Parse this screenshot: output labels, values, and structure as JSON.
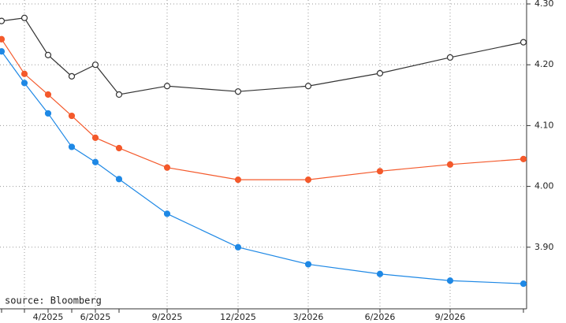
{
  "chart_data": {
    "type": "line",
    "categories": [
      null,
      null,
      "4/2025",
      null,
      "6/2025",
      null,
      "9/2025",
      "12/2025",
      "3/2026",
      "6/2026",
      "9/2026",
      null
    ],
    "series": [
      {
        "color": "#333333",
        "marker": "hollow",
        "values": [
          4.272,
          4.277,
          4.216,
          4.181,
          4.2,
          4.151,
          4.165,
          4.156,
          4.165,
          4.186,
          4.212,
          4.237
        ]
      },
      {
        "color": "#f4592b",
        "marker": "filled",
        "values": [
          4.242,
          4.185,
          4.151,
          4.116,
          4.08,
          4.063,
          4.031,
          4.011,
          4.011,
          4.025,
          4.036,
          4.045
        ]
      },
      {
        "color": "#1e88e5",
        "marker": "filled",
        "values": [
          4.222,
          4.17,
          4.12,
          4.065,
          4.04,
          4.012,
          3.955,
          3.9,
          3.872,
          3.856,
          3.845,
          3.84
        ]
      }
    ],
    "ylim": [
      3.8,
      4.3
    ],
    "yticks": [
      {
        "value": 3.9,
        "label": "3.90"
      },
      {
        "value": 4.0,
        "label": "4.00"
      },
      {
        "value": 4.1,
        "label": "4.10"
      },
      {
        "value": 4.2,
        "label": "4.20"
      },
      {
        "value": 4.3,
        "label": "4.30"
      }
    ],
    "grid": true,
    "annotation": "source: Bloomberg"
  }
}
